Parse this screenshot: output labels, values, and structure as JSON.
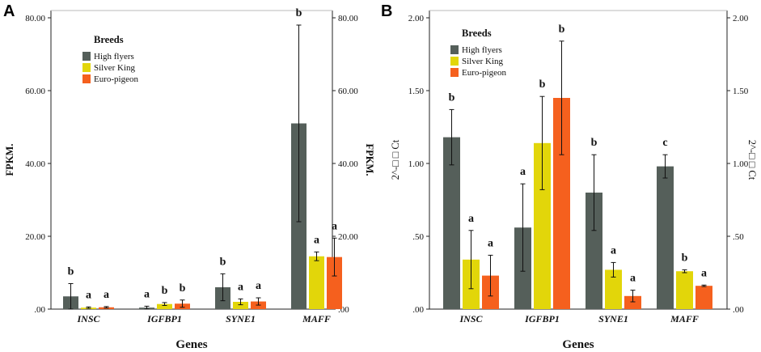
{
  "chart_data": [
    {
      "panel_label": "A",
      "type": "bar",
      "xlabel": "Genes",
      "ylabel": "FPKM.",
      "ylabel_right": "FPKM.",
      "ylim": [
        0,
        82
      ],
      "yticks": [
        0,
        20,
        40,
        60,
        80
      ],
      "ytick_labels": [
        ".00",
        "20.00",
        "40.00",
        "60.00",
        "80.00"
      ],
      "categories": [
        "INSC",
        "IGFBP1",
        "SYNE1",
        "MAFF"
      ],
      "legend_title": "Breeds",
      "series": [
        {
          "name": "High flyers",
          "color": "#555f5a",
          "values": [
            3.5,
            0.4,
            6.0,
            51.0
          ],
          "errors": [
            3.5,
            0.4,
            3.7,
            27.0
          ],
          "letters": [
            "b",
            "a",
            "b",
            "b"
          ]
        },
        {
          "name": "Silver King",
          "color": "#e2d60a",
          "values": [
            0.4,
            1.4,
            2.0,
            14.5
          ],
          "errors": [
            0.2,
            0.4,
            0.8,
            1.2
          ],
          "letters": [
            "a",
            "b",
            "a",
            "a"
          ]
        },
        {
          "name": "Euro-pigeon",
          "color": "#f5601e",
          "values": [
            0.5,
            1.5,
            2.1,
            14.3
          ],
          "errors": [
            0.2,
            1.0,
            1.0,
            5.2
          ],
          "letters": [
            "a",
            "b",
            "a",
            "a"
          ]
        }
      ]
    },
    {
      "panel_label": "B",
      "type": "bar",
      "xlabel": "Genes",
      "ylabel": "2^-□ □ Ct",
      "ylabel_right": "2^-□ □ Ct",
      "ylim": [
        0,
        2.05
      ],
      "yticks": [
        0,
        0.5,
        1.0,
        1.5,
        2.0
      ],
      "ytick_labels": [
        ".00",
        ".50",
        "1.00",
        "1.50",
        "2.00"
      ],
      "categories": [
        "INSC",
        "IGFBP1",
        "SYNE1",
        "MAFF"
      ],
      "legend_title": "Breeds",
      "series": [
        {
          "name": "High flyers",
          "color": "#555f5a",
          "values": [
            1.18,
            0.56,
            0.8,
            0.98
          ],
          "errors": [
            0.19,
            0.3,
            0.26,
            0.08
          ],
          "letters": [
            "b",
            "a",
            "b",
            "c"
          ]
        },
        {
          "name": "Silver King",
          "color": "#e2d60a",
          "values": [
            0.34,
            1.14,
            0.27,
            0.26
          ],
          "errors": [
            0.2,
            0.32,
            0.05,
            0.01
          ],
          "letters": [
            "a",
            "b",
            "a",
            "b"
          ]
        },
        {
          "name": "Euro-pigeon",
          "color": "#f5601e",
          "values": [
            0.23,
            1.45,
            0.09,
            0.16
          ],
          "errors": [
            0.14,
            0.39,
            0.04,
            0.005
          ],
          "letters": [
            "a",
            "b",
            "a",
            "a"
          ]
        }
      ]
    }
  ]
}
